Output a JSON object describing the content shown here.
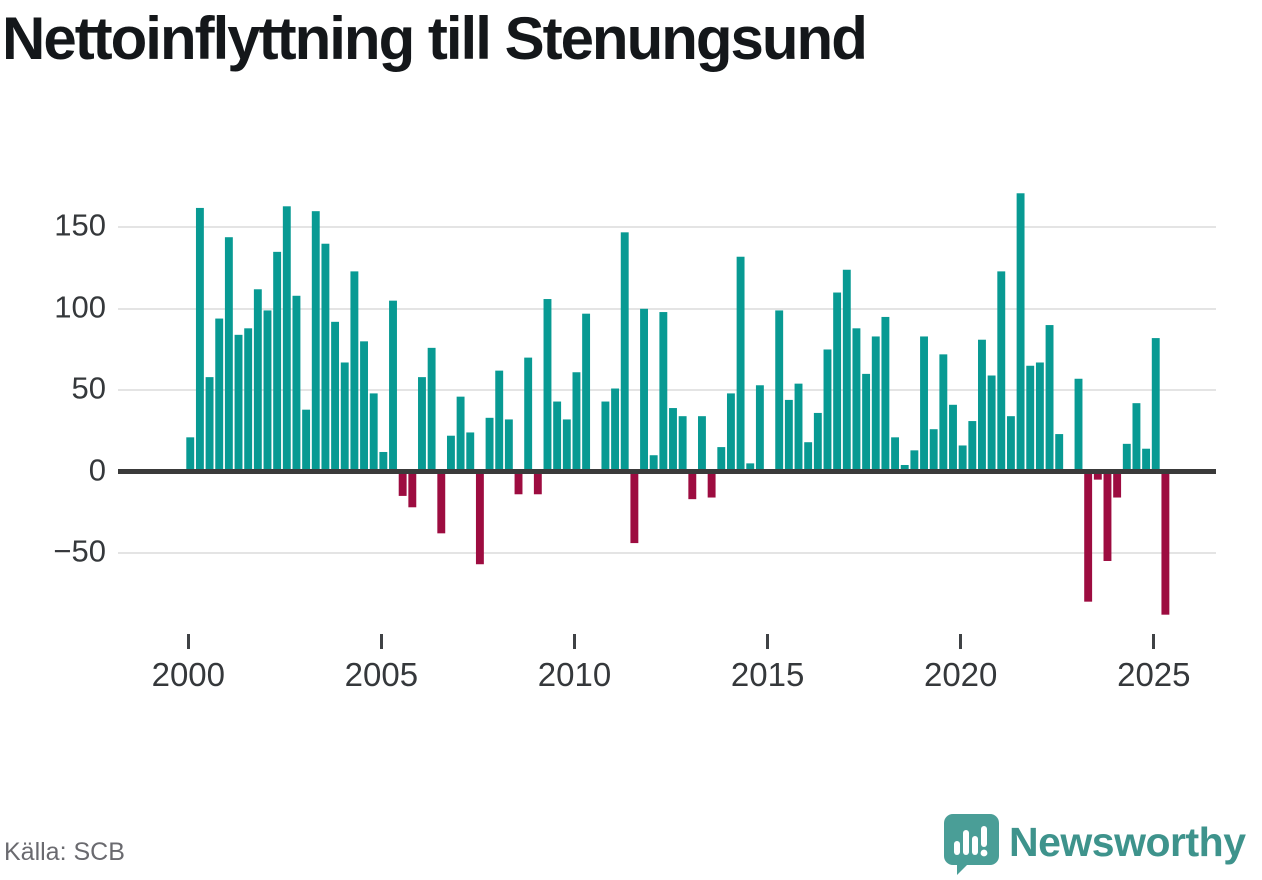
{
  "chart_data": {
    "type": "bar",
    "title": "Nettoinflyttning till Stenungsund",
    "source": "Källa: SCB",
    "x_start": {
      "year": 2000,
      "quarter": 1
    },
    "frequency": "quarterly",
    "values": [
      21,
      162,
      58,
      94,
      144,
      84,
      88,
      112,
      99,
      135,
      163,
      108,
      38,
      160,
      140,
      92,
      67,
      123,
      80,
      48,
      12,
      105,
      -15,
      -22,
      58,
      76,
      -38,
      22,
      46,
      24,
      -57,
      33,
      62,
      32,
      -14,
      70,
      -14,
      106,
      43,
      32,
      61,
      97,
      0,
      43,
      51,
      147,
      -44,
      100,
      10,
      98,
      39,
      34,
      -17,
      34,
      -16,
      15,
      48,
      132,
      5,
      53,
      0,
      99,
      44,
      54,
      18,
      36,
      75,
      110,
      124,
      88,
      60,
      83,
      95,
      21,
      4,
      13,
      83,
      26,
      72,
      41,
      16,
      31,
      81,
      59,
      123,
      34,
      171,
      65,
      67,
      90,
      23,
      0,
      57,
      -80,
      -5,
      -55,
      -16,
      17,
      42,
      14,
      82,
      -88
    ],
    "yticks": [
      150,
      100,
      50,
      0,
      -50
    ],
    "xticks": [
      2000,
      2005,
      2010,
      2015,
      2020,
      2025
    ],
    "ylim": [
      -95,
      180
    ],
    "grid": true,
    "legend": "none",
    "colors": {
      "positive": "#089a93",
      "negative": "#9d0c40"
    }
  },
  "footer": {
    "brand": "Newsworthy",
    "brand_color": "#3e938c",
    "icon": "bar-chart-speech-bubble"
  }
}
